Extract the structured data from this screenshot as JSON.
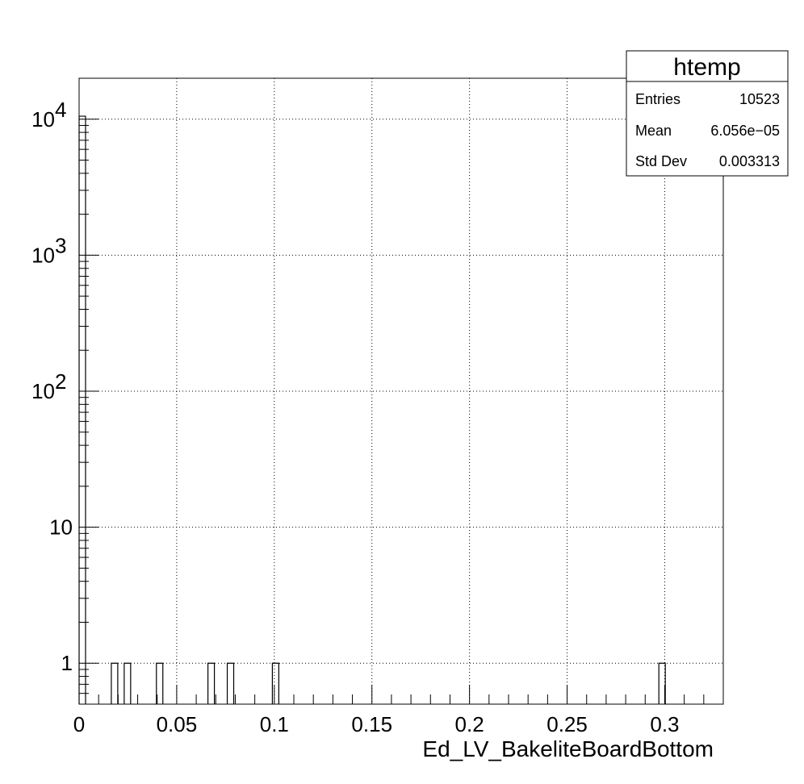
{
  "chart_data": {
    "type": "bar",
    "title": "",
    "xlabel": "Ed_LV_BakeliteBoardBottom",
    "ylabel": "",
    "xlim": [
      0,
      0.33
    ],
    "ylim": [
      0.5,
      20000
    ],
    "log_y": true,
    "grid": true,
    "bin_width": 0.0033,
    "x_ticks": [
      {
        "value": 0,
        "label": "0"
      },
      {
        "value": 0.05,
        "label": "0.05"
      },
      {
        "value": 0.1,
        "label": "0.1"
      },
      {
        "value": 0.15,
        "label": "0.15"
      },
      {
        "value": 0.2,
        "label": "0.2"
      },
      {
        "value": 0.25,
        "label": "0.25"
      },
      {
        "value": 0.3,
        "label": "0.3"
      }
    ],
    "y_ticks": [
      {
        "value": 1,
        "label": "1",
        "exp": ""
      },
      {
        "value": 10,
        "label": "10",
        "exp": ""
      },
      {
        "value": 100,
        "label": "10",
        "exp": "2"
      },
      {
        "value": 1000,
        "label": "10",
        "exp": "3"
      },
      {
        "value": 10000,
        "label": "10",
        "exp": "4"
      }
    ],
    "bins": [
      {
        "x": 0.0,
        "value": 10515
      },
      {
        "x": 0.0165,
        "value": 1
      },
      {
        "x": 0.0231,
        "value": 1
      },
      {
        "x": 0.0396,
        "value": 1
      },
      {
        "x": 0.066,
        "value": 1
      },
      {
        "x": 0.0759,
        "value": 1
      },
      {
        "x": 0.099,
        "value": 1
      },
      {
        "x": 0.297,
        "value": 1
      }
    ]
  },
  "stats": {
    "title": "htemp",
    "rows": [
      {
        "label": "Entries",
        "value": "10523"
      },
      {
        "label": "Mean",
        "value": "6.056e−05"
      },
      {
        "label": "Std Dev",
        "value": "0.003313"
      }
    ]
  }
}
